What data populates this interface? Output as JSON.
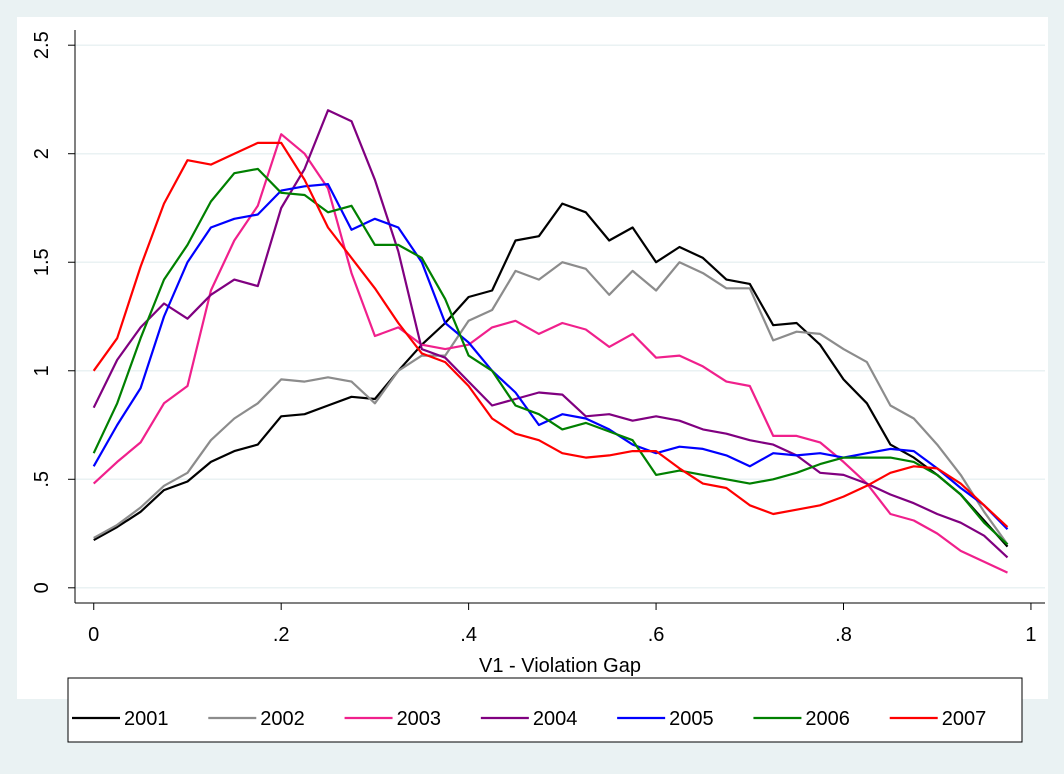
{
  "chart_data": {
    "type": "line",
    "x_label": "V1 - Violation Gap",
    "x": [
      0,
      0.025,
      0.05,
      0.075,
      0.1,
      0.125,
      0.15,
      0.175,
      0.2,
      0.225,
      0.25,
      0.275,
      0.3,
      0.325,
      0.35,
      0.375,
      0.4,
      0.425,
      0.45,
      0.475,
      0.5,
      0.525,
      0.55,
      0.575,
      0.6,
      0.625,
      0.65,
      0.675,
      0.7,
      0.725,
      0.75,
      0.775,
      0.8,
      0.825,
      0.85,
      0.875,
      0.9,
      0.925,
      0.95,
      0.975
    ],
    "series": [
      {
        "name": "2001",
        "color": "#000000",
        "values": [
          0.22,
          0.28,
          0.35,
          0.45,
          0.49,
          0.58,
          0.63,
          0.66,
          0.79,
          0.8,
          0.84,
          0.88,
          0.87,
          1.0,
          1.12,
          1.22,
          1.34,
          1.37,
          1.6,
          1.62,
          1.77,
          1.73,
          1.6,
          1.66,
          1.5,
          1.57,
          1.52,
          1.42,
          1.4,
          1.21,
          1.22,
          1.12,
          0.96,
          0.85,
          0.66,
          0.6,
          0.52,
          0.43,
          0.31,
          0.19
        ]
      },
      {
        "name": "2002",
        "color": "#8c8c8c",
        "values": [
          0.23,
          0.29,
          0.37,
          0.47,
          0.53,
          0.68,
          0.78,
          0.85,
          0.96,
          0.95,
          0.97,
          0.95,
          0.85,
          1.0,
          1.07,
          1.07,
          1.23,
          1.28,
          1.46,
          1.42,
          1.5,
          1.47,
          1.35,
          1.46,
          1.37,
          1.5,
          1.45,
          1.38,
          1.38,
          1.14,
          1.18,
          1.17,
          1.1,
          1.04,
          0.84,
          0.78,
          0.66,
          0.52,
          0.35,
          0.2
        ]
      },
      {
        "name": "2003",
        "color": "#f0208c",
        "values": [
          0.48,
          0.58,
          0.67,
          0.85,
          0.93,
          1.37,
          1.6,
          1.76,
          2.09,
          2.0,
          1.84,
          1.45,
          1.16,
          1.2,
          1.12,
          1.1,
          1.12,
          1.2,
          1.23,
          1.17,
          1.22,
          1.19,
          1.11,
          1.17,
          1.06,
          1.07,
          1.02,
          0.95,
          0.93,
          0.7,
          0.7,
          0.67,
          0.58,
          0.48,
          0.34,
          0.31,
          0.25,
          0.17,
          0.12,
          0.07
        ]
      },
      {
        "name": "2004",
        "color": "#800080",
        "values": [
          0.83,
          1.05,
          1.2,
          1.31,
          1.24,
          1.35,
          1.42,
          1.39,
          1.75,
          1.93,
          2.2,
          2.15,
          1.88,
          1.55,
          1.1,
          1.06,
          0.95,
          0.84,
          0.87,
          0.9,
          0.89,
          0.79,
          0.8,
          0.77,
          0.79,
          0.77,
          0.73,
          0.71,
          0.68,
          0.66,
          0.61,
          0.53,
          0.52,
          0.48,
          0.43,
          0.39,
          0.34,
          0.3,
          0.24,
          0.14
        ]
      },
      {
        "name": "2005",
        "color": "#0000ff",
        "values": [
          0.56,
          0.75,
          0.92,
          1.25,
          1.5,
          1.66,
          1.7,
          1.72,
          1.83,
          1.85,
          1.86,
          1.65,
          1.7,
          1.66,
          1.5,
          1.22,
          1.13,
          1.0,
          0.9,
          0.75,
          0.8,
          0.78,
          0.73,
          0.66,
          0.62,
          0.65,
          0.64,
          0.61,
          0.56,
          0.62,
          0.61,
          0.62,
          0.6,
          0.62,
          0.64,
          0.63,
          0.55,
          0.46,
          0.38,
          0.27
        ]
      },
      {
        "name": "2006",
        "color": "#008000",
        "values": [
          0.62,
          0.85,
          1.15,
          1.42,
          1.58,
          1.78,
          1.91,
          1.93,
          1.82,
          1.81,
          1.73,
          1.76,
          1.58,
          1.58,
          1.52,
          1.33,
          1.07,
          1.0,
          0.84,
          0.8,
          0.73,
          0.76,
          0.72,
          0.68,
          0.52,
          0.54,
          0.52,
          0.5,
          0.48,
          0.5,
          0.53,
          0.57,
          0.6,
          0.6,
          0.6,
          0.58,
          0.52,
          0.43,
          0.3,
          0.2
        ]
      },
      {
        "name": "2007",
        "color": "#ff0000",
        "values": [
          1.0,
          1.15,
          1.48,
          1.77,
          1.97,
          1.95,
          2.0,
          2.05,
          2.05,
          1.88,
          1.66,
          1.52,
          1.38,
          1.22,
          1.08,
          1.04,
          0.93,
          0.78,
          0.71,
          0.68,
          0.62,
          0.6,
          0.61,
          0.63,
          0.63,
          0.55,
          0.48,
          0.46,
          0.38,
          0.34,
          0.36,
          0.38,
          0.42,
          0.47,
          0.53,
          0.56,
          0.55,
          0.48,
          0.38,
          0.28
        ]
      }
    ],
    "xlim": [
      -0.02,
      1.015
    ],
    "ylim": [
      -0.07,
      2.57
    ],
    "xticks": [
      0,
      {
        "value": 0.2,
        "label": ".2"
      },
      {
        "value": 0.4,
        "label": ".4"
      },
      {
        "value": 0.6,
        "label": ".6"
      },
      {
        "value": 0.8,
        "label": ".8"
      },
      1
    ],
    "yticks": [
      0,
      {
        "value": 0.5,
        "label": ".5"
      },
      1,
      1.5,
      2,
      2.5
    ],
    "grid": true,
    "legend": "bottom"
  }
}
